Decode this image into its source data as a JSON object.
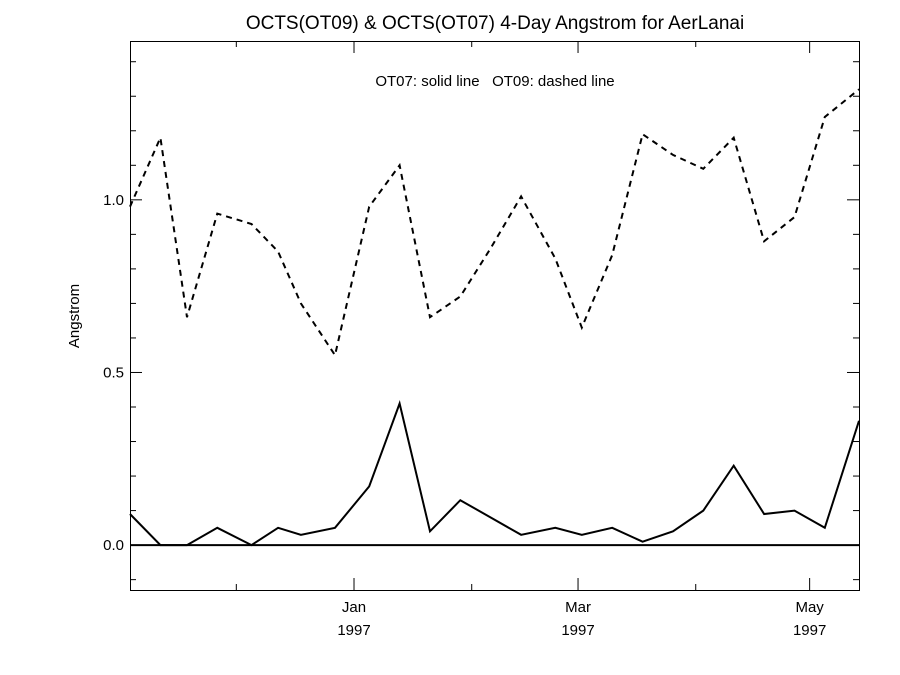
{
  "chart_data": {
    "type": "line",
    "title": "OCTS(OT09) & OCTS(OT07) 4-Day Angstrom for AerLanai",
    "annotation": "OT07: solid line   OT09: dashed line",
    "xlabel": "",
    "ylabel": "Angstrom",
    "ylim": [
      -0.13,
      1.46
    ],
    "xlim": [
      "1996-11-03",
      "1997-05-14"
    ],
    "x_ticks": [
      {
        "date": "1997-01-01",
        "label_month": "Jan",
        "label_year": "1997"
      },
      {
        "date": "1997-03-01",
        "label_month": "Mar",
        "label_year": "1997"
      },
      {
        "date": "1997-05-01",
        "label_month": "May",
        "label_year": "1997"
      }
    ],
    "y_ticks": [
      {
        "value": 0.0,
        "label": "0.0"
      },
      {
        "value": 0.5,
        "label": "0.5"
      },
      {
        "value": 1.0,
        "label": "1.0"
      }
    ],
    "reference_line": 0.0,
    "grid": false,
    "series": [
      {
        "name": "OT09",
        "style": "dashed",
        "x": [
          "1996-11-03",
          "1996-11-11",
          "1996-11-18",
          "1996-11-26",
          "1996-12-05",
          "1996-12-12",
          "1996-12-18",
          "1996-12-27",
          "1997-01-05",
          "1997-01-13",
          "1997-01-21",
          "1997-01-29",
          "1997-02-06",
          "1997-02-14",
          "1997-02-23",
          "1997-03-02",
          "1997-03-10",
          "1997-03-18",
          "1997-03-26",
          "1997-04-03",
          "1997-04-11",
          "1997-04-19",
          "1997-04-27",
          "1997-05-05",
          "1997-05-14"
        ],
        "y": [
          0.98,
          1.18,
          0.66,
          0.96,
          0.93,
          0.85,
          0.7,
          0.55,
          0.98,
          1.1,
          0.66,
          0.72,
          0.86,
          1.01,
          0.83,
          0.63,
          0.84,
          1.19,
          1.13,
          1.09,
          1.18,
          0.88,
          0.95,
          1.24,
          1.32
        ]
      },
      {
        "name": "OT07",
        "style": "solid",
        "x": [
          "1996-11-03",
          "1996-11-11",
          "1996-11-18",
          "1996-11-26",
          "1996-12-05",
          "1996-12-12",
          "1996-12-18",
          "1996-12-27",
          "1997-01-05",
          "1997-01-13",
          "1997-01-21",
          "1997-01-29",
          "1997-02-06",
          "1997-02-14",
          "1997-02-23",
          "1997-03-02",
          "1997-03-10",
          "1997-03-18",
          "1997-03-26",
          "1997-04-03",
          "1997-04-11",
          "1997-04-19",
          "1997-04-27",
          "1997-05-05",
          "1997-05-14"
        ],
        "y": [
          0.09,
          0.0,
          0.0,
          0.05,
          0.0,
          0.05,
          0.03,
          0.05,
          0.17,
          0.41,
          0.04,
          0.13,
          0.08,
          0.03,
          0.05,
          0.03,
          0.05,
          0.01,
          0.04,
          0.1,
          0.23,
          0.09,
          0.1,
          0.05,
          0.36
        ]
      }
    ]
  }
}
